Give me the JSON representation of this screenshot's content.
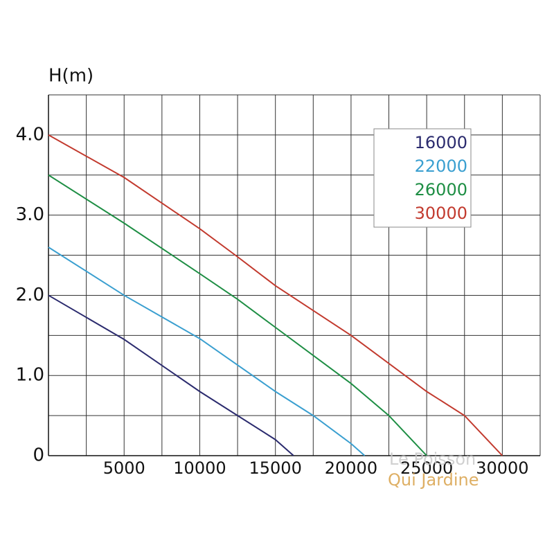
{
  "chart_data": {
    "type": "line",
    "ylabel": "H(m)",
    "xlim": [
      0,
      32500
    ],
    "ylim": [
      0,
      4.5
    ],
    "xticks": [
      5000,
      10000,
      15000,
      20000,
      25000,
      30000
    ],
    "xminor": [
      2500,
      7500,
      12500,
      17500,
      22500,
      27500,
      32500
    ],
    "yticks": [
      0,
      {
        "value": 1,
        "label": "1.0"
      },
      {
        "value": 2,
        "label": "2.0"
      },
      {
        "value": 3,
        "label": "3.0"
      },
      {
        "value": 4,
        "label": "4.0"
      }
    ],
    "yminor": [
      0.5,
      1.5,
      2.5,
      3.5,
      4.5
    ],
    "grid": true,
    "legend": "upper right",
    "watermark": [
      "Le Poisson",
      "Qui Jardine"
    ],
    "series": [
      {
        "name": "16000",
        "color": "#2b2b6e",
        "x": [
          0,
          5000,
          10000,
          12500,
          15000,
          16200
        ],
        "values": [
          2.0,
          1.45,
          0.8,
          0.5,
          0.2,
          0
        ]
      },
      {
        "name": "22000",
        "color": "#3a9fd0",
        "x": [
          0,
          5000,
          10000,
          15000,
          17500,
          20000,
          20900
        ],
        "values": [
          2.6,
          2.0,
          1.46,
          0.8,
          0.5,
          0.15,
          0
        ]
      },
      {
        "name": "26000",
        "color": "#1e8e44",
        "x": [
          0,
          5000,
          10000,
          12500,
          15000,
          20000,
          22500,
          25000
        ],
        "values": [
          3.5,
          2.9,
          2.27,
          1.95,
          1.6,
          0.9,
          0.5,
          0
        ]
      },
      {
        "name": "30000",
        "color": "#c23a2e",
        "x": [
          0,
          5000,
          10000,
          12500,
          15000,
          20000,
          25000,
          27500,
          30000
        ],
        "values": [
          4.0,
          3.47,
          2.83,
          2.48,
          2.12,
          1.5,
          0.8,
          0.5,
          0
        ]
      }
    ]
  }
}
